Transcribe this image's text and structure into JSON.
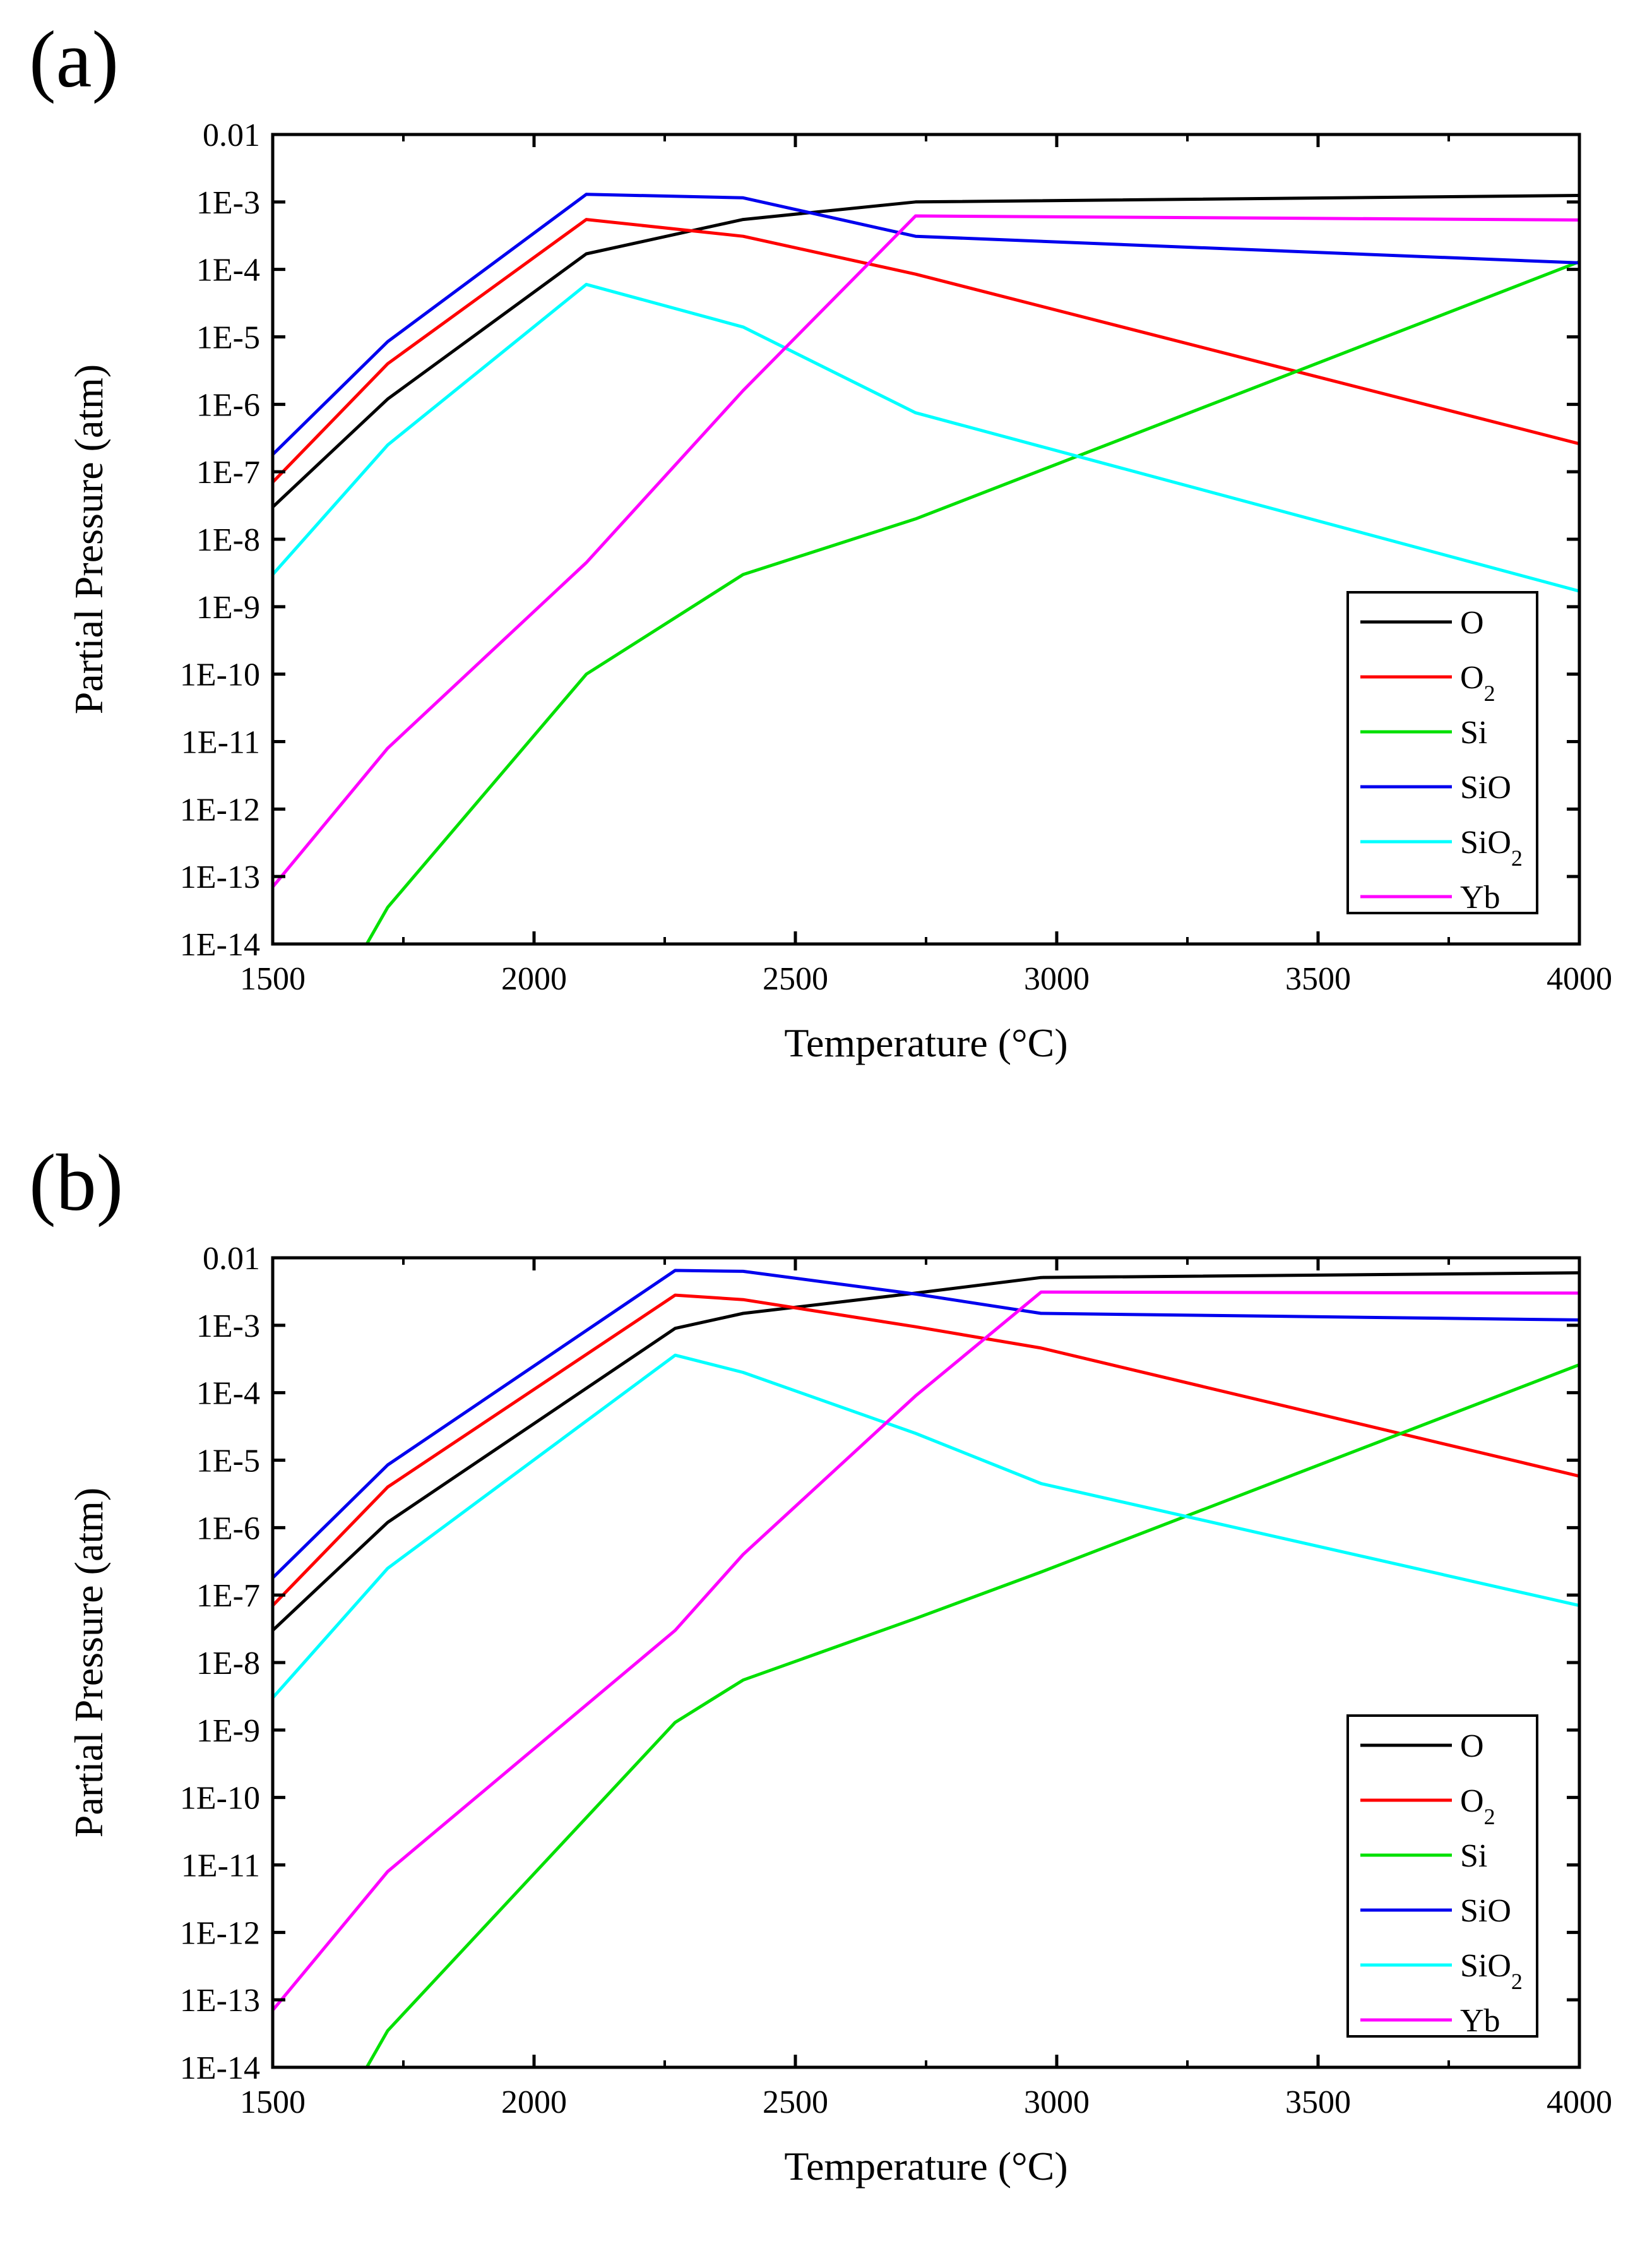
{
  "chart_data": [
    {
      "type": "line",
      "panel_label": "(a)",
      "title": "",
      "xlabel": "Temperature (°C)",
      "ylabel": "Partial Pressure (atm)",
      "xlim": [
        1500,
        4000
      ],
      "ylim": [
        1e-14,
        0.01
      ],
      "y_scale": "log",
      "x_ticks": [
        "1500",
        "2000",
        "2500",
        "3000",
        "3500",
        "4000"
      ],
      "y_ticks": [
        "1E-14",
        "1E-13",
        "1E-12",
        "1E-11",
        "1E-10",
        "1E-9",
        "1E-8",
        "1E-7",
        "1E-6",
        "1E-5",
        "1E-4",
        "1E-3",
        "0.01"
      ],
      "grid": false,
      "legend_position": "lower-right",
      "series": [
        {
          "name": "O",
          "color": "#000000",
          "points": [
            [
              1500,
              3e-08
            ],
            [
              1720,
              1.2e-06
            ],
            [
              2100,
              0.00017
            ],
            [
              2400,
              0.00055
            ],
            [
              2730,
              0.001
            ],
            [
              4000,
              0.00125
            ]
          ]
        },
        {
          "name": "O2",
          "label_main": "O",
          "label_sub": "2",
          "color": "#ff0000",
          "points": [
            [
              1500,
              7e-08
            ],
            [
              1720,
              4e-06
            ],
            [
              2100,
              0.00055
            ],
            [
              2400,
              0.00031
            ],
            [
              2730,
              8.5e-05
            ],
            [
              4000,
              2.6e-07
            ]
          ]
        },
        {
          "name": "Si",
          "color": "#00e000",
          "points": [
            [
              1680,
              1e-14
            ],
            [
              1720,
              3.5e-14
            ],
            [
              2100,
              1e-10
            ],
            [
              2400,
              3e-09
            ],
            [
              2730,
              2e-08
            ],
            [
              4000,
              0.00013
            ]
          ]
        },
        {
          "name": "SiO",
          "color": "#0000ee",
          "points": [
            [
              1500,
              1.8e-07
            ],
            [
              1720,
              8.5e-06
            ],
            [
              2100,
              0.0013
            ],
            [
              2400,
              0.00115
            ],
            [
              2730,
              0.00031
            ],
            [
              4000,
              0.000125
            ]
          ]
        },
        {
          "name": "SiO2",
          "label_main": "SiO",
          "label_sub": "2",
          "color": "#00ffff",
          "points": [
            [
              1500,
              3e-09
            ],
            [
              1720,
              2.5e-07
            ],
            [
              2100,
              6e-05
            ],
            [
              2400,
              1.4e-05
            ],
            [
              2730,
              7.5e-07
            ],
            [
              4000,
              1.7e-09
            ]
          ]
        },
        {
          "name": "Yb",
          "color": "#ff00ff",
          "points": [
            [
              1500,
              7e-14
            ],
            [
              1720,
              8e-12
            ],
            [
              2100,
              4.5e-09
            ],
            [
              2400,
              1.6e-06
            ],
            [
              2730,
              0.00062
            ],
            [
              4000,
              0.00054
            ]
          ]
        }
      ]
    },
    {
      "type": "line",
      "panel_label": "(b)",
      "title": "",
      "xlabel": "Temperature (°C)",
      "ylabel": "Partial Pressure (atm)",
      "xlim": [
        1500,
        4000
      ],
      "ylim": [
        1e-14,
        0.01
      ],
      "y_scale": "log",
      "x_ticks": [
        "1500",
        "2000",
        "2500",
        "3000",
        "3500",
        "4000"
      ],
      "y_ticks": [
        "1E-14",
        "1E-13",
        "1E-12",
        "1E-11",
        "1E-10",
        "1E-9",
        "1E-8",
        "1E-7",
        "1E-6",
        "1E-5",
        "1E-4",
        "1E-3",
        "0.01"
      ],
      "grid": false,
      "legend_position": "lower-right",
      "series": [
        {
          "name": "O",
          "color": "#000000",
          "points": [
            [
              1500,
              3e-08
            ],
            [
              1720,
              1.2e-06
            ],
            [
              2270,
              0.0009
            ],
            [
              2400,
              0.0015
            ],
            [
              2730,
              0.003
            ],
            [
              2970,
              0.0051
            ],
            [
              4000,
              0.006
            ]
          ]
        },
        {
          "name": "O2",
          "label_main": "O",
          "label_sub": "2",
          "color": "#ff0000",
          "points": [
            [
              1500,
              7e-08
            ],
            [
              1720,
              4e-06
            ],
            [
              2270,
              0.0028
            ],
            [
              2400,
              0.0024
            ],
            [
              2730,
              0.00095
            ],
            [
              2970,
              0.00046
            ],
            [
              4000,
              5.8e-06
            ]
          ]
        },
        {
          "name": "Si",
          "color": "#00e000",
          "points": [
            [
              1680,
              1e-14
            ],
            [
              1720,
              3.5e-14
            ],
            [
              2270,
              1.3e-09
            ],
            [
              2400,
              5.5e-09
            ],
            [
              2730,
              4.5e-08
            ],
            [
              2970,
              2.2e-07
            ],
            [
              4000,
              0.00026
            ]
          ]
        },
        {
          "name": "SiO",
          "color": "#0000ee",
          "points": [
            [
              1500,
              1.8e-07
            ],
            [
              1720,
              8.5e-06
            ],
            [
              2270,
              0.0065
            ],
            [
              2400,
              0.0063
            ],
            [
              2730,
              0.0029
            ],
            [
              2970,
              0.0015
            ],
            [
              4000,
              0.0012
            ]
          ]
        },
        {
          "name": "SiO2",
          "label_main": "SiO",
          "label_sub": "2",
          "color": "#00ffff",
          "points": [
            [
              1500,
              3e-09
            ],
            [
              1720,
              2.5e-07
            ],
            [
              2270,
              0.00036
            ],
            [
              2400,
              0.0002
            ],
            [
              2730,
              2.5e-05
            ],
            [
              2970,
              4.5e-06
            ],
            [
              4000,
              7e-08
            ]
          ]
        },
        {
          "name": "Yb",
          "color": "#ff00ff",
          "points": [
            [
              1500,
              7e-14
            ],
            [
              1720,
              8e-12
            ],
            [
              2270,
              3e-08
            ],
            [
              2400,
              4e-07
            ],
            [
              2730,
              9e-05
            ],
            [
              2970,
              0.0031
            ],
            [
              4000,
              0.003
            ]
          ]
        }
      ]
    }
  ]
}
